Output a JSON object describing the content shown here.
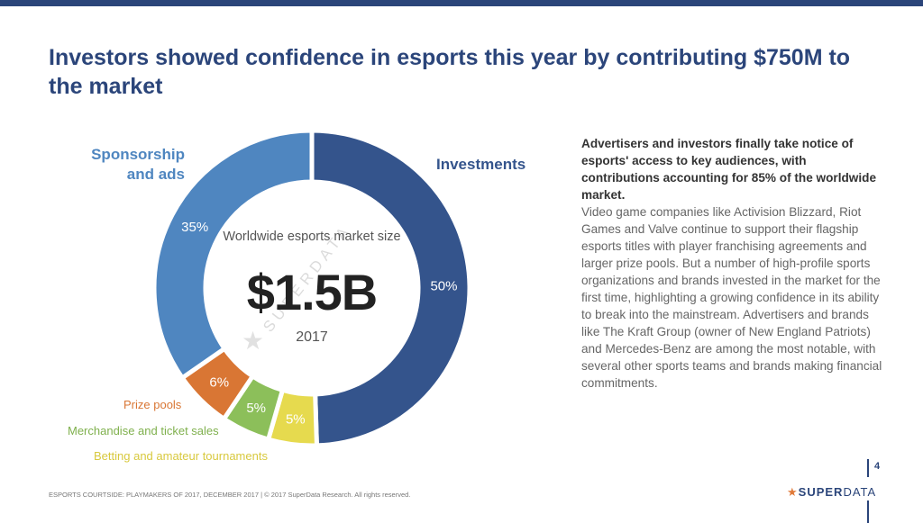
{
  "title": "Investors showed confidence in esports this year by contributing $750M to the market",
  "chart_data": {
    "type": "pie",
    "subtype": "donut",
    "center_label": "Worldwide esports market size",
    "center_value": "$1.5B",
    "center_year": "2017",
    "slices": [
      {
        "name": "Investments",
        "value": 50,
        "label": "50%",
        "color": "#34548c"
      },
      {
        "name": "Betting and amateur tournaments",
        "value": 5,
        "label": "5%",
        "color": "#e6da4e"
      },
      {
        "name": "Merchandise and ticket sales",
        "value": 5,
        "label": "5%",
        "color": "#8cbf5a"
      },
      {
        "name": "Prize pools",
        "value": 6,
        "label": "6%",
        "color": "#d97634"
      },
      {
        "name": "Sponsorship and ads",
        "value": 35,
        "label": "35%",
        "color": "#4f86c0"
      }
    ]
  },
  "legend_labels": {
    "sponsorship_line1": "Sponsorship",
    "sponsorship_line2": "and ads",
    "investments": "Investments",
    "prize": "Prize pools",
    "merch": "Merchandise and ticket sales",
    "betting": "Betting and amateur tournaments"
  },
  "body": {
    "lead": "Advertisers and investors finally take notice of esports' access to key audiences, with contributions accounting for 85% of the worldwide market.",
    "text": "Video game companies like Activision Blizzard, Riot Games and Valve continue to support their flagship esports titles with player franchising agreements and larger prize pools. But a number of high-profile sports organizations and brands invested in the market for the first time, highlighting a growing confidence in its ability to break into the mainstream. Advertisers and brands like The Kraft Group (owner of New England Patriots) and Mercedes-Benz are among the most notable, with several other sports teams and brands making financial commitments."
  },
  "footer": "ESPORTS COURTSIDE: PLAYMAKERS OF 2017, DECEMBER 2017  |  © 2017 SuperData Research. All rights reserved.",
  "page_number": "4",
  "logo": {
    "star": "★",
    "text_bold": "SUPER",
    "text": "DATA"
  },
  "watermark": "SUPERDATA"
}
